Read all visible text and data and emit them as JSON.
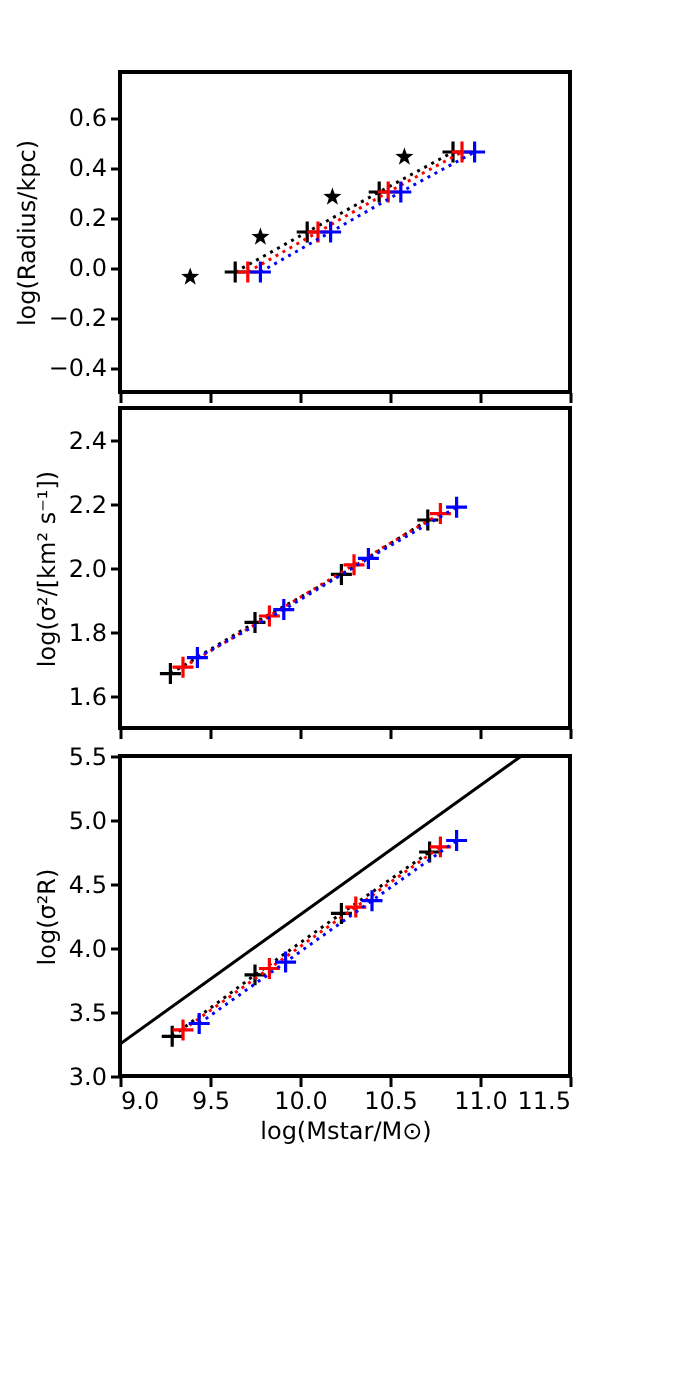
{
  "chart_data": [
    {
      "type": "line",
      "marker": "cross",
      "line_style": "dotted",
      "grid": false,
      "tick_labels": "y",
      "ylabel": "log(Radius/kpc)",
      "xlim": [
        9.0,
        11.5
      ],
      "ylim": [
        -0.5,
        0.78
      ],
      "xticks": [
        {
          "value": 9,
          "label": null
        },
        {
          "value": 9.5,
          "label": null
        },
        {
          "value": 10,
          "label": null
        },
        {
          "value": 10.5,
          "label": null
        },
        {
          "value": 11,
          "label": null
        },
        {
          "value": 11.5,
          "label": null
        }
      ],
      "yticks": [
        {
          "value": -0.4,
          "label": "−0.4"
        },
        {
          "value": -0.2,
          "label": "−0.2"
        },
        {
          "value": 0,
          "label": "0.0"
        },
        {
          "value": 0.2,
          "label": "0.2"
        },
        {
          "value": 0.4,
          "label": "0.4"
        },
        {
          "value": 0.6,
          "label": "0.6"
        }
      ],
      "series": [
        {
          "type": "scatter",
          "marker": "star",
          "color": "#000000",
          "x": [
            9.39,
            9.78,
            10.18,
            10.58
          ],
          "values": [
            -0.04,
            0.12,
            0.28,
            0.44
          ]
        },
        {
          "color": "#000000",
          "x": [
            9.64,
            10.04,
            10.44,
            10.85
          ],
          "values": [
            -0.02,
            0.14,
            0.3,
            0.46
          ]
        },
        {
          "color": "#ff0000",
          "x": [
            9.71,
            10.1,
            10.49,
            10.9
          ],
          "values": [
            -0.02,
            0.14,
            0.3,
            0.46
          ]
        },
        {
          "color": "#0000ff",
          "x": [
            9.78,
            10.17,
            10.56,
            10.97
          ],
          "values": [
            -0.02,
            0.14,
            0.3,
            0.46
          ]
        }
      ]
    },
    {
      "type": "line",
      "marker": "cross",
      "line_style": "dotted",
      "grid": false,
      "tick_labels": "y",
      "ylabel": "log(σ²/[km² s⁻¹])",
      "xlim": [
        9.0,
        11.5
      ],
      "ylim": [
        1.5,
        2.5
      ],
      "xticks": [
        {
          "value": 9,
          "label": null
        },
        {
          "value": 9.5,
          "label": null
        },
        {
          "value": 10,
          "label": null
        },
        {
          "value": 10.5,
          "label": null
        },
        {
          "value": 11,
          "label": null
        },
        {
          "value": 11.5,
          "label": null
        }
      ],
      "yticks": [
        {
          "value": 1.6,
          "label": "1.6"
        },
        {
          "value": 1.8,
          "label": "1.8"
        },
        {
          "value": 2,
          "label": "2.0"
        },
        {
          "value": 2.2,
          "label": "2.2"
        },
        {
          "value": 2.4,
          "label": "2.4"
        }
      ],
      "series": [
        {
          "color": "#000000",
          "x": [
            9.28,
            9.75,
            10.23,
            10.71
          ],
          "values": [
            1.67,
            1.83,
            1.98,
            2.15
          ]
        },
        {
          "color": "#ff0000",
          "x": [
            9.35,
            9.83,
            10.3,
            10.78
          ],
          "values": [
            1.69,
            1.85,
            2.01,
            2.17
          ]
        },
        {
          "color": "#0000ff",
          "x": [
            9.43,
            9.91,
            10.38,
            10.87
          ],
          "values": [
            1.72,
            1.87,
            2.03,
            2.19
          ]
        }
      ]
    },
    {
      "type": "line",
      "marker": "cross",
      "line_style": "dotted",
      "grid": false,
      "xlabel": "log(Mstar/M⊙)",
      "ylabel": "log(σ²R)",
      "xlim": [
        9.0,
        11.5
      ],
      "ylim": [
        3.0,
        5.5
      ],
      "xticks": [
        {
          "value": 9,
          "label": "9.0"
        },
        {
          "value": 9.5,
          "label": "9.5"
        },
        {
          "value": 10,
          "label": "10.0"
        },
        {
          "value": 10.5,
          "label": "10.5"
        },
        {
          "value": 11,
          "label": "11.0"
        },
        {
          "value": 11.5,
          "label": "11.5"
        }
      ],
      "yticks": [
        {
          "value": 3,
          "label": "3.0"
        },
        {
          "value": 3.5,
          "label": "3.5"
        },
        {
          "value": 4,
          "label": "4.0"
        },
        {
          "value": 4.5,
          "label": "4.5"
        },
        {
          "value": 5,
          "label": "5.0"
        },
        {
          "value": 5.5,
          "label": "5.5"
        }
      ],
      "series": [
        {
          "marker": "none",
          "line_style": "solid",
          "color": "#000000",
          "x": [
            9.0,
            11.23
          ],
          "values": [
            3.25,
            5.5
          ]
        },
        {
          "color": "#000000",
          "x": [
            9.29,
            9.75,
            10.23,
            10.72
          ],
          "values": [
            3.31,
            3.79,
            4.27,
            4.75
          ]
        },
        {
          "color": "#ff0000",
          "x": [
            9.35,
            9.83,
            10.31,
            10.78
          ],
          "values": [
            3.36,
            3.84,
            4.32,
            4.79
          ]
        },
        {
          "color": "#0000ff",
          "x": [
            9.44,
            9.92,
            10.4,
            10.87
          ],
          "values": [
            3.41,
            3.89,
            4.37,
            4.84
          ]
        }
      ]
    }
  ]
}
